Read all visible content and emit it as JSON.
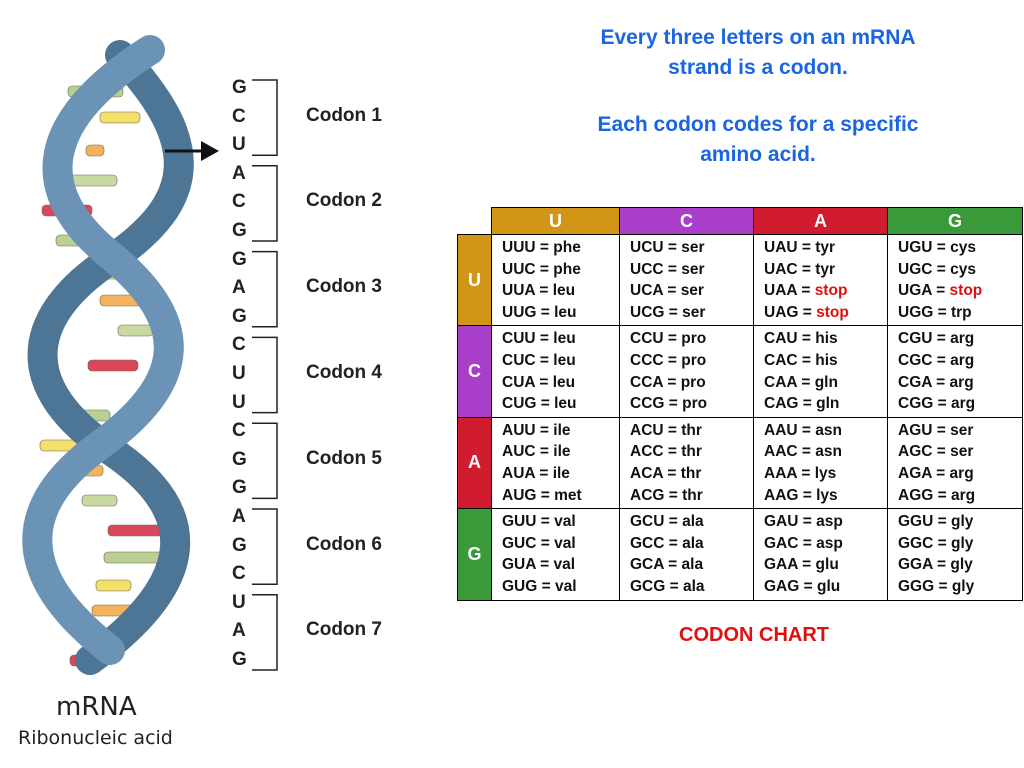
{
  "headline": {
    "line1a": "Every three letters on an mRNA",
    "line1b": "strand is a codon.",
    "line2a": "Each codon codes for a specific",
    "line2b": "amino acid."
  },
  "strand": {
    "bases": [
      "G",
      "C",
      "U",
      "A",
      "C",
      "G",
      "G",
      "A",
      "G",
      "C",
      "U",
      "U",
      "C",
      "G",
      "G",
      "A",
      "G",
      "C",
      "U",
      "A",
      "G"
    ],
    "codons": [
      "Codon 1",
      "Codon 2",
      "Codon 3",
      "Codon 4",
      "Codon 5",
      "Codon 6",
      "Codon 7"
    ]
  },
  "helix_caption": {
    "title": "mRNA",
    "subtitle": "Ribonucleic acid"
  },
  "colors": {
    "U": "#d19616",
    "C": "#a93ec9",
    "A": "#d11b2f",
    "G": "#3a9a3a",
    "helix": "#5d86a8",
    "headline": "#1a66e0",
    "stop": "#e01010"
  },
  "table": {
    "columns": [
      {
        "label": "U",
        "color": "#d19616"
      },
      {
        "label": "C",
        "color": "#a93ec9"
      },
      {
        "label": "A",
        "color": "#d11b2f"
      },
      {
        "label": "G",
        "color": "#3a9a3a"
      }
    ],
    "rows": [
      {
        "label": "U",
        "color": "#d19616",
        "cells": [
          [
            {
              "codon": "UUU",
              "aa": "phe"
            },
            {
              "codon": "UUC",
              "aa": "phe"
            },
            {
              "codon": "UUA",
              "aa": "leu"
            },
            {
              "codon": "UUG",
              "aa": "leu"
            }
          ],
          [
            {
              "codon": "UCU",
              "aa": "ser"
            },
            {
              "codon": "UCC",
              "aa": "ser"
            },
            {
              "codon": "UCA",
              "aa": "ser"
            },
            {
              "codon": "UCG",
              "aa": "ser"
            }
          ],
          [
            {
              "codon": "UAU",
              "aa": "tyr"
            },
            {
              "codon": "UAC",
              "aa": "tyr"
            },
            {
              "codon": "UAA",
              "aa": "stop",
              "stop": true
            },
            {
              "codon": "UAG",
              "aa": "stop",
              "stop": true
            }
          ],
          [
            {
              "codon": "UGU",
              "aa": "cys"
            },
            {
              "codon": "UGC",
              "aa": "cys"
            },
            {
              "codon": "UGA",
              "aa": "stop",
              "stop": true
            },
            {
              "codon": "UGG",
              "aa": "trp"
            }
          ]
        ]
      },
      {
        "label": "C",
        "color": "#a93ec9",
        "cells": [
          [
            {
              "codon": "CUU",
              "aa": "leu"
            },
            {
              "codon": "CUC",
              "aa": "leu"
            },
            {
              "codon": "CUA",
              "aa": "leu"
            },
            {
              "codon": "CUG",
              "aa": "leu"
            }
          ],
          [
            {
              "codon": "CCU",
              "aa": "pro"
            },
            {
              "codon": "CCC",
              "aa": "pro"
            },
            {
              "codon": "CCA",
              "aa": "pro"
            },
            {
              "codon": "CCG",
              "aa": "pro"
            }
          ],
          [
            {
              "codon": "CAU",
              "aa": "his"
            },
            {
              "codon": "CAC",
              "aa": "his"
            },
            {
              "codon": "CAA",
              "aa": "gln"
            },
            {
              "codon": "CAG",
              "aa": "gln"
            }
          ],
          [
            {
              "codon": "CGU",
              "aa": "arg"
            },
            {
              "codon": "CGC",
              "aa": "arg"
            },
            {
              "codon": "CGA",
              "aa": "arg"
            },
            {
              "codon": "CGG",
              "aa": "arg"
            }
          ]
        ]
      },
      {
        "label": "A",
        "color": "#d11b2f",
        "cells": [
          [
            {
              "codon": "AUU",
              "aa": "ile"
            },
            {
              "codon": "AUC",
              "aa": "ile"
            },
            {
              "codon": "AUA",
              "aa": "ile"
            },
            {
              "codon": "AUG",
              "aa": "met"
            }
          ],
          [
            {
              "codon": "ACU",
              "aa": "thr"
            },
            {
              "codon": "ACC",
              "aa": "thr"
            },
            {
              "codon": "ACA",
              "aa": "thr"
            },
            {
              "codon": "ACG",
              "aa": "thr"
            }
          ],
          [
            {
              "codon": "AAU",
              "aa": "asn"
            },
            {
              "codon": "AAC",
              "aa": "asn"
            },
            {
              "codon": "AAA",
              "aa": "lys"
            },
            {
              "codon": "AAG",
              "aa": "lys"
            }
          ],
          [
            {
              "codon": "AGU",
              "aa": "ser"
            },
            {
              "codon": "AGC",
              "aa": "ser"
            },
            {
              "codon": "AGA",
              "aa": "arg"
            },
            {
              "codon": "AGG",
              "aa": "arg"
            }
          ]
        ]
      },
      {
        "label": "G",
        "color": "#3a9a3a",
        "cells": [
          [
            {
              "codon": "GUU",
              "aa": "val"
            },
            {
              "codon": "GUC",
              "aa": "val"
            },
            {
              "codon": "GUA",
              "aa": "val"
            },
            {
              "codon": "GUG",
              "aa": "val"
            }
          ],
          [
            {
              "codon": "GCU",
              "aa": "ala"
            },
            {
              "codon": "GCC",
              "aa": "ala"
            },
            {
              "codon": "GCA",
              "aa": "ala"
            },
            {
              "codon": "GCG",
              "aa": "ala"
            }
          ],
          [
            {
              "codon": "GAU",
              "aa": "asp"
            },
            {
              "codon": "GAC",
              "aa": "asp"
            },
            {
              "codon": "GAA",
              "aa": "glu"
            },
            {
              "codon": "GAG",
              "aa": "glu"
            }
          ],
          [
            {
              "codon": "GGU",
              "aa": "gly"
            },
            {
              "codon": "GGC",
              "aa": "gly"
            },
            {
              "codon": "GGA",
              "aa": "gly"
            },
            {
              "codon": "GGG",
              "aa": "gly"
            }
          ]
        ]
      }
    ]
  },
  "chart_caption": "CODON CHART"
}
